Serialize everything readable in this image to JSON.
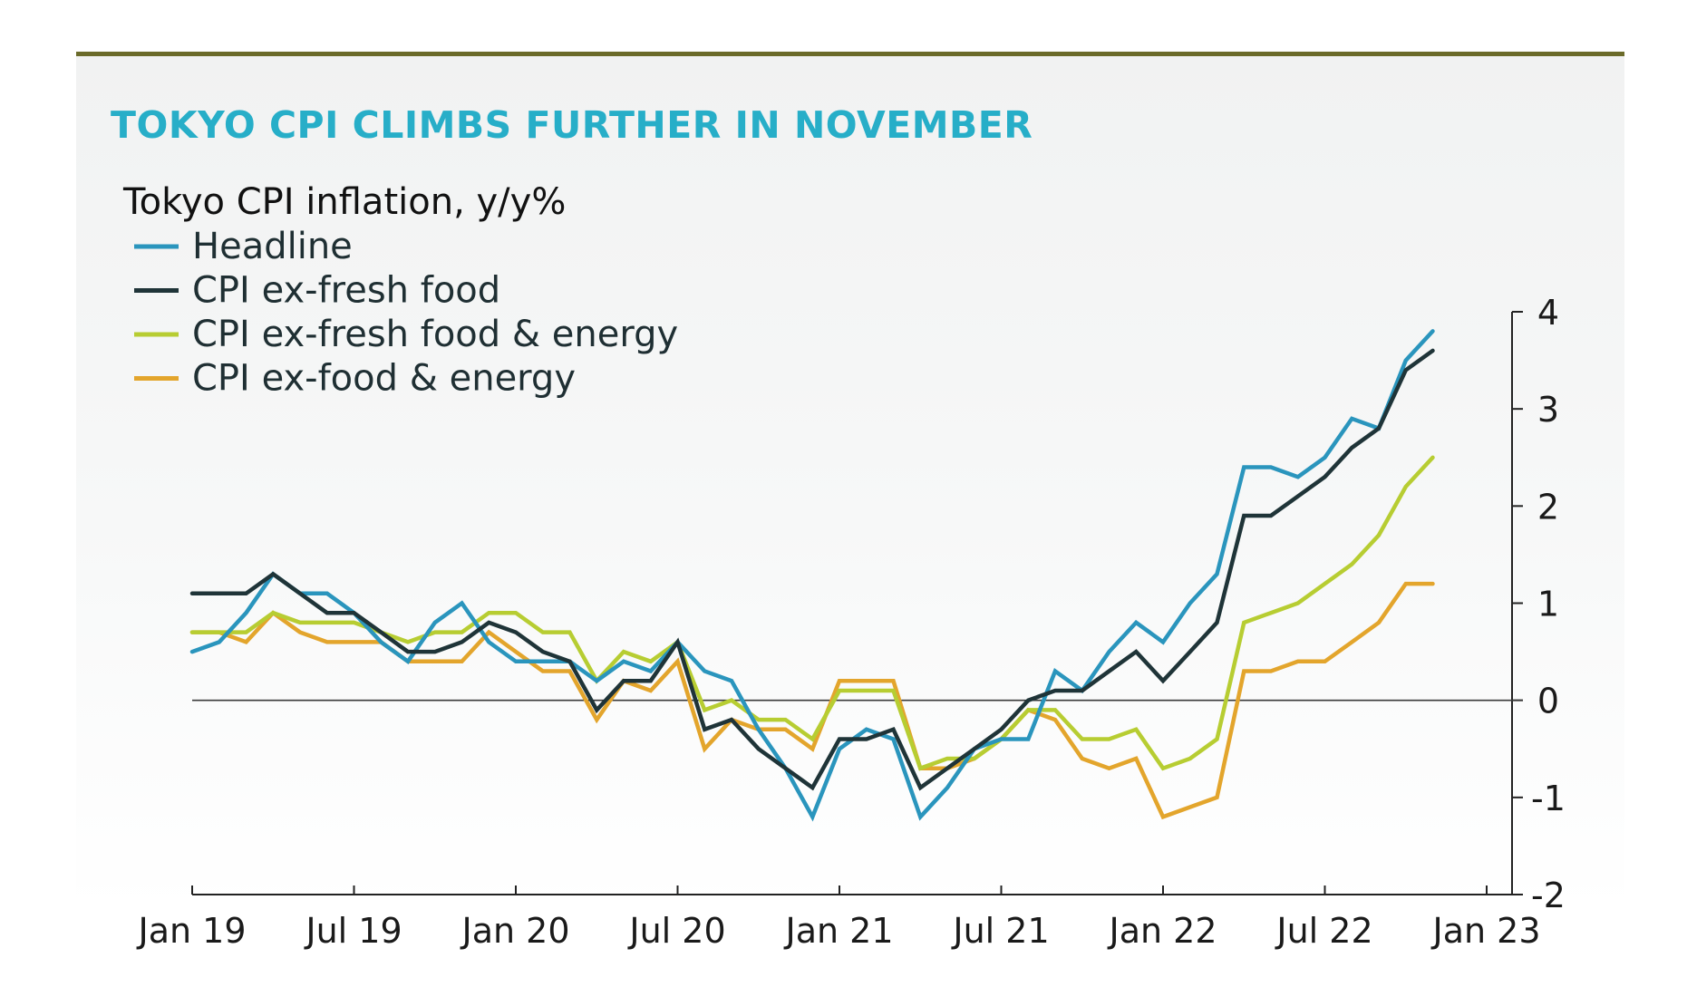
{
  "header": {
    "title": "TOKYO CPI CLIMBS FURTHER IN NOVEMBER"
  },
  "chart_data": {
    "type": "line",
    "title": "Tokyo CPI inflation, y/y%",
    "xlabel": "",
    "ylabel": "",
    "ylim": [
      -2,
      4
    ],
    "yticks": [
      "4",
      "3",
      "2",
      "1",
      "0",
      "-1",
      "-2"
    ],
    "xticks": [
      "Jan 19",
      "Jul 19",
      "Jan 20",
      "Jul 20",
      "Jan 21",
      "Jul 21",
      "Jan 22",
      "Jul 22",
      "Jan 23"
    ],
    "x_start": "Jan 19",
    "x_end": "Jan 23",
    "reference_line": 0,
    "legend": "top-left",
    "x": [
      "Jan 19",
      "Feb 19",
      "Mar 19",
      "Apr 19",
      "May 19",
      "Jun 19",
      "Jul 19",
      "Aug 19",
      "Sep 19",
      "Oct 19",
      "Nov 19",
      "Dec 19",
      "Jan 20",
      "Feb 20",
      "Mar 20",
      "Apr 20",
      "May 20",
      "Jun 20",
      "Jul 20",
      "Aug 20",
      "Sep 20",
      "Oct 20",
      "Nov 20",
      "Dec 20",
      "Jan 21",
      "Feb 21",
      "Mar 21",
      "Apr 21",
      "May 21",
      "Jun 21",
      "Jul 21",
      "Aug 21",
      "Sep 21",
      "Oct 21",
      "Nov 21",
      "Dec 21",
      "Jan 22",
      "Feb 22",
      "Mar 22",
      "Apr 22",
      "May 22",
      "Jun 22",
      "Jul 22",
      "Aug 22",
      "Sep 22",
      "Oct 22",
      "Nov 22"
    ],
    "series": [
      {
        "name": "Headline",
        "color": "#2a95bd",
        "values": [
          0.5,
          0.6,
          0.9,
          1.3,
          1.1,
          1.1,
          0.9,
          0.6,
          0.4,
          0.8,
          1.0,
          0.6,
          0.4,
          0.4,
          0.4,
          0.2,
          0.4,
          0.3,
          0.6,
          0.3,
          0.2,
          -0.3,
          -0.7,
          -1.2,
          -0.5,
          -0.3,
          -0.4,
          -1.2,
          -0.9,
          -0.5,
          -0.4,
          -0.4,
          0.3,
          0.1,
          0.5,
          0.8,
          0.6,
          1.0,
          1.3,
          2.4,
          2.4,
          2.3,
          2.5,
          2.9,
          2.8,
          3.5,
          3.8
        ]
      },
      {
        "name": "CPI ex-fresh food",
        "color": "#1f3438",
        "values": [
          1.1,
          1.1,
          1.1,
          1.3,
          1.1,
          0.9,
          0.9,
          0.7,
          0.5,
          0.5,
          0.6,
          0.8,
          0.7,
          0.5,
          0.4,
          -0.1,
          0.2,
          0.2,
          0.6,
          -0.3,
          -0.2,
          -0.5,
          -0.7,
          -0.9,
          -0.4,
          -0.4,
          -0.3,
          -0.9,
          -0.7,
          -0.5,
          -0.3,
          0.0,
          0.1,
          0.1,
          0.3,
          0.5,
          0.2,
          0.5,
          0.8,
          1.9,
          1.9,
          2.1,
          2.3,
          2.6,
          2.8,
          3.4,
          3.6
        ]
      },
      {
        "name": "CPI ex-fresh food & energy",
        "color": "#b7cd32",
        "values": [
          0.7,
          0.7,
          0.7,
          0.9,
          0.8,
          0.8,
          0.8,
          0.7,
          0.6,
          0.7,
          0.7,
          0.9,
          0.9,
          0.7,
          0.7,
          0.2,
          0.5,
          0.4,
          0.6,
          -0.1,
          0.0,
          -0.2,
          -0.2,
          -0.4,
          0.1,
          0.1,
          0.1,
          -0.7,
          -0.6,
          -0.6,
          -0.4,
          -0.1,
          -0.1,
          -0.4,
          -0.4,
          -0.3,
          -0.7,
          -0.6,
          -0.4,
          0.8,
          0.9,
          1.0,
          1.2,
          1.4,
          1.7,
          2.2,
          2.5
        ]
      },
      {
        "name": "CPI ex-food & energy",
        "color": "#e3a52c",
        "values": [
          0.7,
          0.7,
          0.6,
          0.9,
          0.7,
          0.6,
          0.6,
          0.6,
          0.4,
          0.4,
          0.4,
          0.7,
          0.5,
          0.3,
          0.3,
          -0.2,
          0.2,
          0.1,
          0.4,
          -0.5,
          -0.2,
          -0.3,
          -0.3,
          -0.5,
          0.2,
          0.2,
          0.2,
          -0.7,
          -0.7,
          -0.6,
          -0.4,
          -0.1,
          -0.2,
          -0.6,
          -0.7,
          -0.6,
          -1.2,
          -1.1,
          -1.0,
          0.3,
          0.3,
          0.4,
          0.4,
          0.6,
          0.8,
          1.2,
          1.2
        ]
      }
    ]
  }
}
